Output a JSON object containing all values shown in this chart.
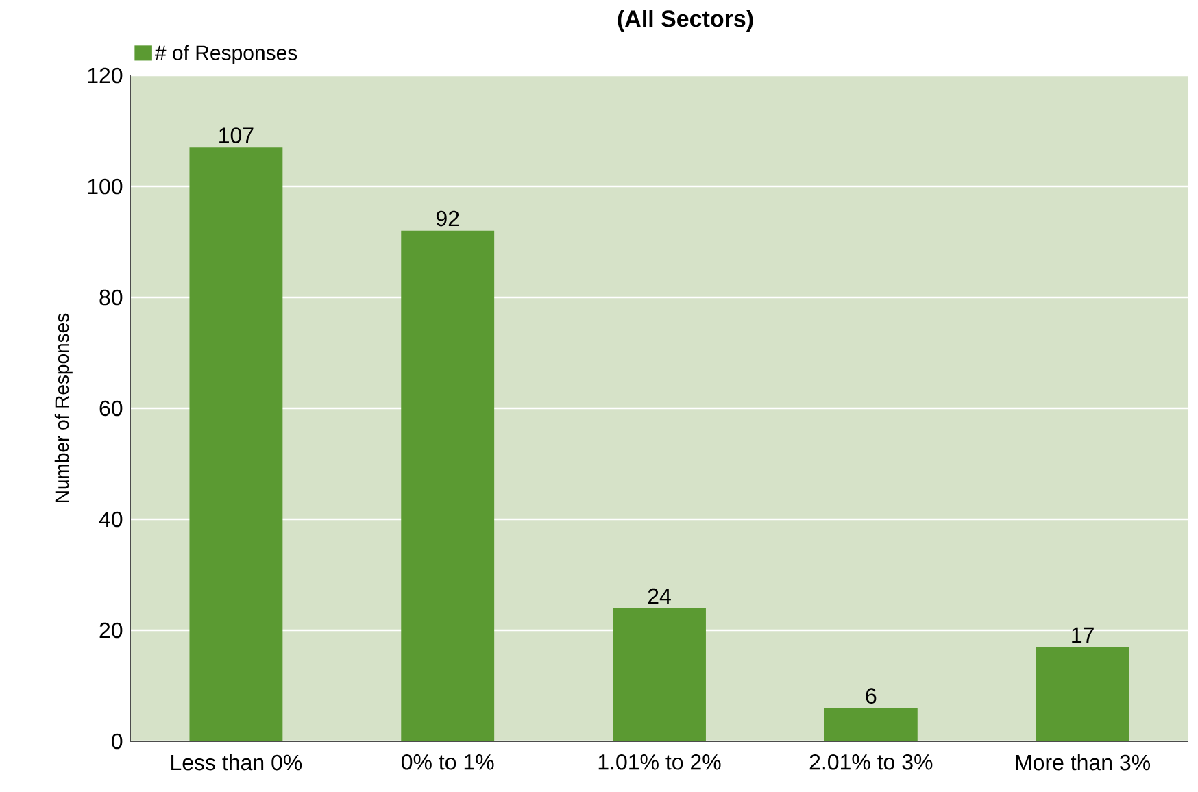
{
  "chart_data": {
    "type": "bar",
    "subtitle": "(All Sectors)",
    "ylabel": "Number of Responses",
    "categories": [
      "Less than 0%",
      "0% to 1%",
      "1.01% to 2%",
      "2.01% to 3%",
      "More than 3%"
    ],
    "series": [
      {
        "name": "# of Responses",
        "color": "#5b9a32",
        "values": [
          107,
          92,
          24,
          6,
          17
        ]
      }
    ],
    "ylim": [
      0,
      120
    ],
    "yticks": [
      0,
      20,
      40,
      60,
      80,
      100,
      120
    ],
    "grid": "y",
    "legend": "top left",
    "data_labels": true
  }
}
